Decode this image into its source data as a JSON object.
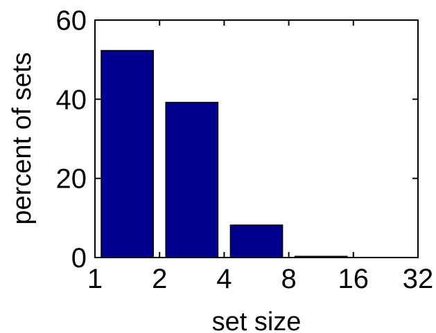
{
  "chart_data": {
    "type": "bar",
    "title": "",
    "xlabel": "set size",
    "ylabel": "percent of sets",
    "x_scale": "log2",
    "x_ticks": [
      1,
      2,
      4,
      8,
      16,
      32
    ],
    "x_tick_labels": [
      "1",
      "2",
      "4",
      "8",
      "16",
      "32"
    ],
    "y_ticks": [
      0,
      20,
      40,
      60
    ],
    "y_tick_labels": [
      "0",
      "20",
      "40",
      "60"
    ],
    "ylim": [
      0,
      60
    ],
    "xlim": [
      1,
      32
    ],
    "grid": false,
    "legend": "none",
    "bars": [
      {
        "x_start": 1,
        "x_end": 2,
        "value": 52.3
      },
      {
        "x_start": 2,
        "x_end": 4,
        "value": 39.2
      },
      {
        "x_start": 4,
        "x_end": 8,
        "value": 8.2
      },
      {
        "x_start": 8,
        "x_end": 16,
        "value": 0.3
      },
      {
        "x_start": 16,
        "x_end": 32,
        "value": 0.05
      }
    ],
    "colors": {
      "bar_fill": "#00008f",
      "bar_edge": "#000000",
      "axis": "#000000",
      "background": "#ffffff"
    }
  }
}
